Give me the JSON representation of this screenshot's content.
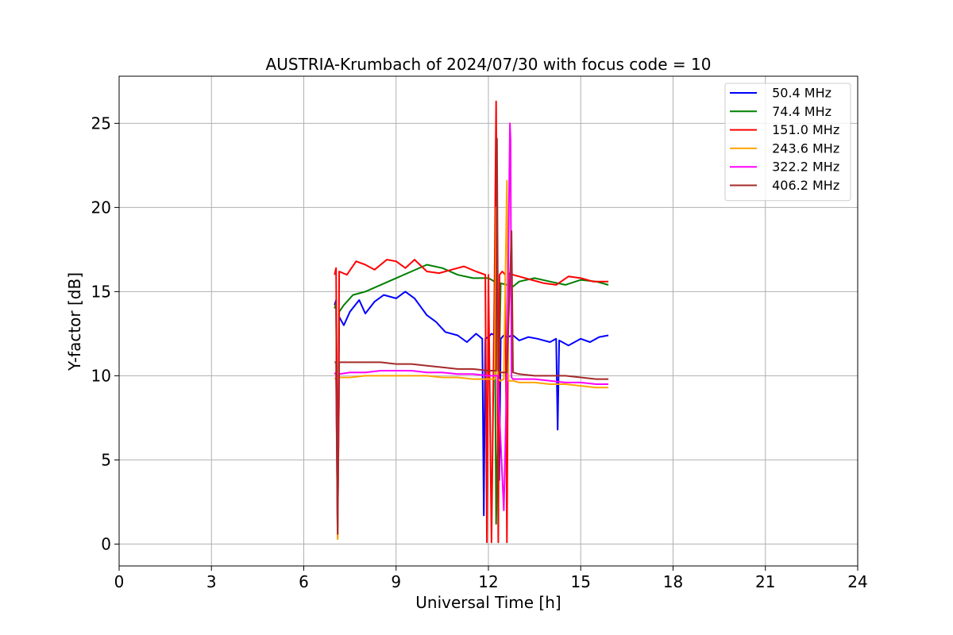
{
  "chart_data": {
    "type": "line",
    "title": "AUSTRIA-Krumbach of 2024/07/30 with focus code = 10",
    "xlabel": "Universal Time [h]",
    "ylabel": "Y-factor [dB]",
    "xlim": [
      0,
      24
    ],
    "ylim": [
      -1.3,
      27.8
    ],
    "xticks": [
      0,
      3,
      6,
      9,
      12,
      15,
      18,
      21,
      24
    ],
    "yticks": [
      0,
      5,
      10,
      15,
      20,
      25
    ],
    "grid": true,
    "legend_position": "top-right",
    "series": [
      {
        "name": " 50.4 MHz",
        "color": "#0000ff",
        "x": [
          7.0,
          7.05,
          7.1,
          7.15,
          7.3,
          7.5,
          7.8,
          8.0,
          8.3,
          8.6,
          9.0,
          9.3,
          9.6,
          10.0,
          10.3,
          10.6,
          11.0,
          11.3,
          11.6,
          11.8,
          11.85,
          11.9,
          12.0,
          12.1,
          12.2,
          12.3,
          12.35,
          12.4,
          12.5,
          12.6,
          12.8,
          13.0,
          13.3,
          13.6,
          14.0,
          14.2,
          14.25,
          14.3,
          14.6,
          15.0,
          15.3,
          15.6,
          15.9
        ],
        "y": [
          14.2,
          14.5,
          1.0,
          13.5,
          13.0,
          13.8,
          14.5,
          13.7,
          14.4,
          14.8,
          14.6,
          15.0,
          14.6,
          13.6,
          13.2,
          12.6,
          12.4,
          12.0,
          12.5,
          12.2,
          1.7,
          12.2,
          12.3,
          12.5,
          12.4,
          12.3,
          3.8,
          12.2,
          12.4,
          12.3,
          12.4,
          12.1,
          12.3,
          12.2,
          12.0,
          12.2,
          6.8,
          12.1,
          11.8,
          12.2,
          12.0,
          12.3,
          12.4
        ]
      },
      {
        "name": " 74.4 MHz",
        "color": "#008000",
        "x": [
          7.0,
          7.05,
          7.1,
          7.15,
          7.3,
          7.6,
          8.0,
          8.5,
          9.0,
          9.5,
          10.0,
          10.5,
          11.0,
          11.5,
          12.0,
          12.2,
          12.25,
          12.4,
          12.6,
          12.8,
          13.0,
          13.5,
          14.0,
          14.5,
          15.0,
          15.5,
          15.9
        ],
        "y": [
          14.0,
          14.3,
          0.3,
          13.8,
          14.2,
          14.8,
          15.0,
          15.4,
          15.8,
          16.2,
          16.6,
          16.4,
          16.0,
          15.8,
          15.8,
          15.6,
          1.2,
          15.5,
          15.4,
          15.3,
          15.6,
          15.8,
          15.6,
          15.4,
          15.7,
          15.6,
          15.4
        ]
      },
      {
        "name": " 151.0 MHz",
        "color": "#ff0000",
        "x": [
          7.0,
          7.05,
          7.1,
          7.15,
          7.4,
          7.7,
          8.0,
          8.3,
          8.7,
          9.0,
          9.3,
          9.6,
          10.0,
          10.4,
          10.8,
          11.2,
          11.6,
          11.9,
          11.95,
          12.0,
          12.1,
          12.2,
          12.25,
          12.28,
          12.32,
          12.36,
          12.45,
          12.55,
          12.6,
          12.65,
          12.7,
          12.8,
          13.0,
          13.4,
          13.8,
          14.2,
          14.6,
          15.0,
          15.4,
          15.9
        ],
        "y": [
          16.0,
          16.4,
          0.4,
          16.2,
          16.0,
          16.8,
          16.6,
          16.3,
          16.9,
          16.8,
          16.4,
          16.9,
          16.2,
          16.1,
          16.3,
          16.5,
          16.2,
          16.0,
          0.1,
          16.0,
          0.1,
          16.0,
          26.3,
          16.1,
          0.1,
          16.0,
          16.2,
          16.0,
          0.1,
          16.0,
          16.1,
          16.0,
          15.9,
          15.7,
          15.5,
          15.4,
          15.9,
          15.8,
          15.6,
          15.6
        ]
      },
      {
        "name": " 243.6 MHz",
        "color": "#ffa500",
        "x": [
          7.0,
          7.05,
          7.1,
          7.15,
          7.5,
          8.0,
          8.5,
          9.0,
          9.5,
          10.0,
          10.5,
          11.0,
          11.5,
          12.0,
          12.2,
          12.25,
          12.3,
          12.4,
          12.5,
          12.6,
          12.65,
          12.7,
          12.8,
          13.0,
          13.5,
          14.0,
          14.5,
          15.0,
          15.5,
          15.9
        ],
        "y": [
          9.8,
          9.9,
          0.3,
          9.9,
          9.9,
          10.0,
          10.0,
          10.0,
          10.0,
          10.0,
          9.9,
          9.9,
          9.8,
          9.8,
          9.8,
          20.0,
          9.8,
          9.7,
          9.8,
          21.6,
          9.7,
          9.7,
          9.7,
          9.6,
          9.6,
          9.5,
          9.5,
          9.4,
          9.3,
          9.3
        ]
      },
      {
        "name": " 322.2 MHz",
        "color": "#ff00ff",
        "x": [
          7.0,
          7.05,
          7.1,
          7.15,
          7.5,
          8.0,
          8.5,
          9.0,
          9.5,
          10.0,
          10.5,
          11.0,
          11.5,
          12.0,
          12.3,
          12.5,
          12.6,
          12.7,
          12.72,
          12.75,
          12.8,
          13.0,
          13.5,
          14.0,
          14.5,
          15.0,
          15.5,
          15.9
        ],
        "y": [
          10.1,
          10.2,
          1.0,
          10.1,
          10.2,
          10.2,
          10.3,
          10.3,
          10.3,
          10.2,
          10.2,
          10.1,
          10.1,
          10.0,
          10.0,
          2.0,
          10.0,
          25.0,
          24.0,
          9.9,
          9.8,
          9.8,
          9.8,
          9.7,
          9.6,
          9.6,
          9.5,
          9.5
        ]
      },
      {
        "name": " 406.2 MHz",
        "color": "#a52a2a",
        "x": [
          7.0,
          7.05,
          7.1,
          7.15,
          7.5,
          8.0,
          8.5,
          9.0,
          9.5,
          10.0,
          10.5,
          11.0,
          11.5,
          12.0,
          12.25,
          12.28,
          12.32,
          12.4,
          12.6,
          12.75,
          12.8,
          13.0,
          13.5,
          14.0,
          14.5,
          15.0,
          15.5,
          15.9
        ],
        "y": [
          10.8,
          10.8,
          0.6,
          10.8,
          10.8,
          10.8,
          10.8,
          10.7,
          10.7,
          10.6,
          10.5,
          10.4,
          10.4,
          10.3,
          10.3,
          24.1,
          10.3,
          10.2,
          10.2,
          18.6,
          10.2,
          10.1,
          10.0,
          10.0,
          10.0,
          9.9,
          9.8,
          9.8
        ]
      }
    ]
  }
}
